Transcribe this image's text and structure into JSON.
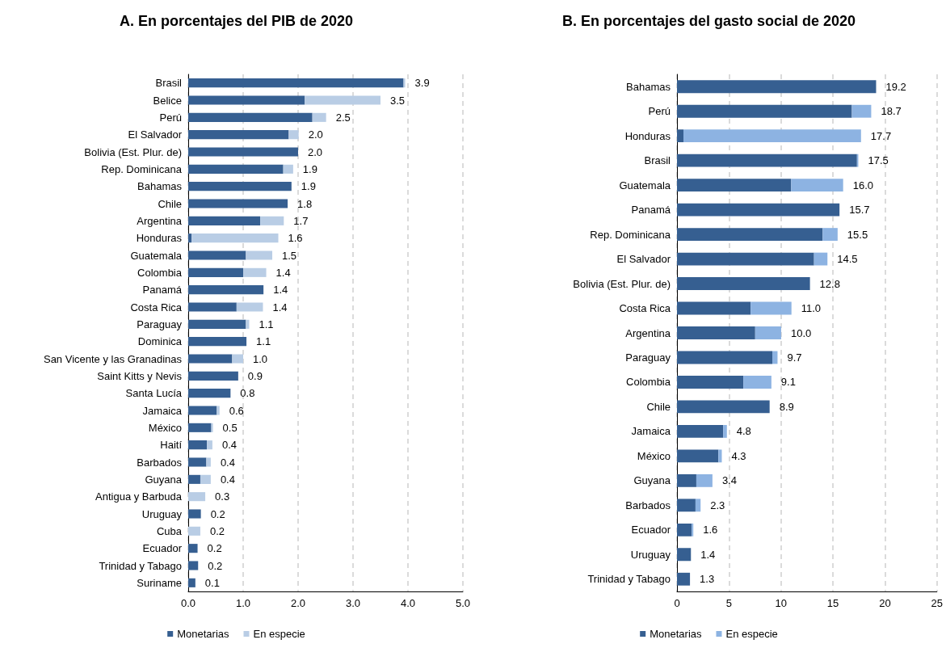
{
  "chart_data": [
    {
      "type": "bar",
      "orientation": "horizontal",
      "stacked": true,
      "title": "A. En porcentajes del PIB de 2020",
      "categories": [
        "Brasil",
        "Belice",
        "Perú",
        "El Salvador",
        "Bolivia (Est. Plur. de)",
        "Rep. Dominicana",
        "Bahamas",
        "Chile",
        "Argentina",
        "Honduras",
        "Guatemala",
        "Colombia",
        "Panamá",
        "Costa Rica",
        "Paraguay",
        "Dominica",
        "San Vicente y las Granadinas",
        "Saint Kitts y Nevis",
        "Santa Lucía",
        "Jamaica",
        "México",
        "Haití",
        "Barbados",
        "Guyana",
        "Antigua y Barbuda",
        "Uruguay",
        "Cuba",
        "Ecuador",
        "Trinidad y Tabago",
        "Suriname"
      ],
      "series": [
        {
          "name": "Monetarias",
          "color": "#365f91",
          "values": [
            3.92,
            2.12,
            2.26,
            1.83,
            2.0,
            1.73,
            1.88,
            1.81,
            1.31,
            0.06,
            1.05,
            1.0,
            1.37,
            0.88,
            1.05,
            1.06,
            0.8,
            0.91,
            0.77,
            0.52,
            0.42,
            0.34,
            0.33,
            0.22,
            0,
            0.23,
            0,
            0.17,
            0.18,
            0.13
          ]
        },
        {
          "name": "En especie",
          "color": "#b9cde5",
          "values": [
            0.03,
            1.38,
            0.25,
            0.18,
            0,
            0.18,
            0,
            0,
            0.43,
            1.58,
            0.48,
            0.42,
            0,
            0.48,
            0.06,
            0,
            0.2,
            0,
            0,
            0.05,
            0.03,
            0.1,
            0.08,
            0.19,
            0.31,
            0,
            0.22,
            0,
            0,
            0
          ]
        }
      ],
      "totals": [
        "3.9",
        "3.5",
        "2.5",
        "2.0",
        "2.0",
        "1.9",
        "1.9",
        "1.8",
        "1.7",
        "1.6",
        "1.5",
        "1.4",
        "1.4",
        "1.4",
        "1.1",
        "1.1",
        "1.0",
        "0.9",
        "0.8",
        "0.6",
        "0.5",
        "0.4",
        "0.4",
        "0.4",
        "0.3",
        "0.2",
        "0.2",
        "0.2",
        "0.2",
        "0.1"
      ],
      "xlim": [
        0,
        5
      ],
      "xticks": [
        {
          "value": 0,
          "label": "0.0"
        },
        {
          "value": 1,
          "label": "1.0"
        },
        {
          "value": 2,
          "label": "2.0"
        },
        {
          "value": 3,
          "label": "3.0"
        },
        {
          "value": 4,
          "label": "4.0"
        },
        {
          "value": 5,
          "label": "5.0"
        }
      ],
      "grid": "x",
      "legend": "bottom"
    },
    {
      "type": "bar",
      "orientation": "horizontal",
      "stacked": true,
      "title": "B. En porcentajes del gasto social de 2020",
      "categories": [
        "Bahamas",
        "Perú",
        "Honduras",
        "Brasil",
        "Guatemala",
        "Panamá",
        "Rep. Dominicana",
        "El Salvador",
        "Bolivia (Est. Plur. de)",
        "Costa Rica",
        "Argentina",
        "Paraguay",
        "Colombia",
        "Chile",
        "Jamaica",
        "México",
        "Guyana",
        "Barbados",
        "Ecuador",
        "Uruguay",
        "Trinidad y Tabago"
      ],
      "series": [
        {
          "name": "Monetarias",
          "color": "#365f91",
          "values": [
            19.15,
            16.82,
            0.62,
            17.31,
            10.98,
            15.63,
            14.0,
            13.18,
            12.79,
            7.08,
            7.52,
            9.17,
            6.38,
            8.91,
            4.44,
            3.98,
            1.86,
            1.78,
            1.42,
            1.34,
            1.25
          ]
        },
        {
          "name": "En especie",
          "color": "#8db3e2",
          "values": [
            0,
            1.86,
            17.08,
            0.13,
            5.0,
            0,
            1.45,
            1.29,
            0,
            3.93,
            2.5,
            0.5,
            2.7,
            0,
            0.36,
            0.33,
            1.55,
            0.49,
            0.15,
            0,
            0
          ]
        }
      ],
      "totals": [
        "19.2",
        "18.7",
        "17.7",
        "17.5",
        "16.0",
        "15.7",
        "15.5",
        "14.5",
        "12.8",
        "11.0",
        "10.0",
        "9.7",
        "9.1",
        "8.9",
        "4.8",
        "4.3",
        "3.4",
        "2.3",
        "1.6",
        "1.4",
        "1.3"
      ],
      "xlim": [
        0,
        25
      ],
      "xticks": [
        0,
        5,
        10,
        15,
        20,
        25
      ],
      "grid": "x",
      "legend": "bottom"
    }
  ]
}
